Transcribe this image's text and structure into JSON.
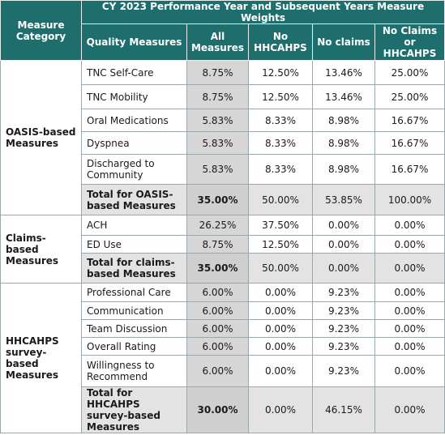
{
  "header": {
    "category": "Measure Category",
    "title": "CY 2023 Performance Year and Subsequent Years Measure Weights",
    "columns": [
      "Quality Measures",
      "All Measures",
      "No HHCAHPS",
      "No claims",
      "No Claims or HHCAHPS"
    ]
  },
  "groups": [
    {
      "category": "OASIS-based Measures",
      "rows": [
        {
          "measure": "TNC Self-Care",
          "all": "8.75%",
          "no_hhcahps": "12.50%",
          "no_claims": "13.46%",
          "no_claims_hhcahps": "25.00%"
        },
        {
          "measure": "TNC Mobility",
          "all": "8.75%",
          "no_hhcahps": "12.50%",
          "no_claims": "13.46%",
          "no_claims_hhcahps": "25.00%"
        },
        {
          "measure": "Oral Medications",
          "all": "5.83%",
          "no_hhcahps": "8.33%",
          "no_claims": "8.98%",
          "no_claims_hhcahps": "16.67%"
        },
        {
          "measure": "Dyspnea",
          "all": "5.83%",
          "no_hhcahps": "8.33%",
          "no_claims": "8.98%",
          "no_claims_hhcahps": "16.67%"
        },
        {
          "measure": "Discharged to Community",
          "all": "5.83%",
          "no_hhcahps": "8.33%",
          "no_claims": "8.98%",
          "no_claims_hhcahps": "16.67%"
        },
        {
          "measure": "Total for OASIS-based Measures",
          "all": "35.00%",
          "no_hhcahps": "50.00%",
          "no_claims": "53.85%",
          "no_claims_hhcahps": "100.00%",
          "total": true
        }
      ]
    },
    {
      "category": "Claims-based Measures",
      "rows": [
        {
          "measure": "ACH",
          "all": "26.25%",
          "no_hhcahps": "37.50%",
          "no_claims": "0.00%",
          "no_claims_hhcahps": "0.00%"
        },
        {
          "measure": "ED Use",
          "all": "8.75%",
          "no_hhcahps": "12.50%",
          "no_claims": "0.00%",
          "no_claims_hhcahps": "0.00%"
        },
        {
          "measure": "Total for claims-based Measures",
          "all": "35.00%",
          "no_hhcahps": "50.00%",
          "no_claims": "0.00%",
          "no_claims_hhcahps": "0.00%",
          "total": true
        }
      ]
    },
    {
      "category": "HHCAHPS survey-based Measures",
      "rows": [
        {
          "measure": "Professional Care",
          "all": "6.00%",
          "no_hhcahps": "0.00%",
          "no_claims": "9.23%",
          "no_claims_hhcahps": "0.00%"
        },
        {
          "measure": "Communication",
          "all": "6.00%",
          "no_hhcahps": "0.00%",
          "no_claims": "9.23%",
          "no_claims_hhcahps": "0.00%"
        },
        {
          "measure": "Team Discussion",
          "all": "6.00%",
          "no_hhcahps": "0.00%",
          "no_claims": "9.23%",
          "no_claims_hhcahps": "0.00%"
        },
        {
          "measure": "Overall Rating",
          "all": "6.00%",
          "no_hhcahps": "0.00%",
          "no_claims": "9.23%",
          "no_claims_hhcahps": "0.00%"
        },
        {
          "measure": "Willingness to Recommend",
          "all": "6.00%",
          "no_hhcahps": "0.00%",
          "no_claims": "9.23%",
          "no_claims_hhcahps": "0.00%"
        },
        {
          "measure": "Total for HHCAHPS survey-based Measures",
          "all": "30.00%",
          "no_hhcahps": "0.00%",
          "no_claims": "46.15%",
          "no_claims_hhcahps": "0.00%",
          "total": true
        }
      ]
    }
  ]
}
